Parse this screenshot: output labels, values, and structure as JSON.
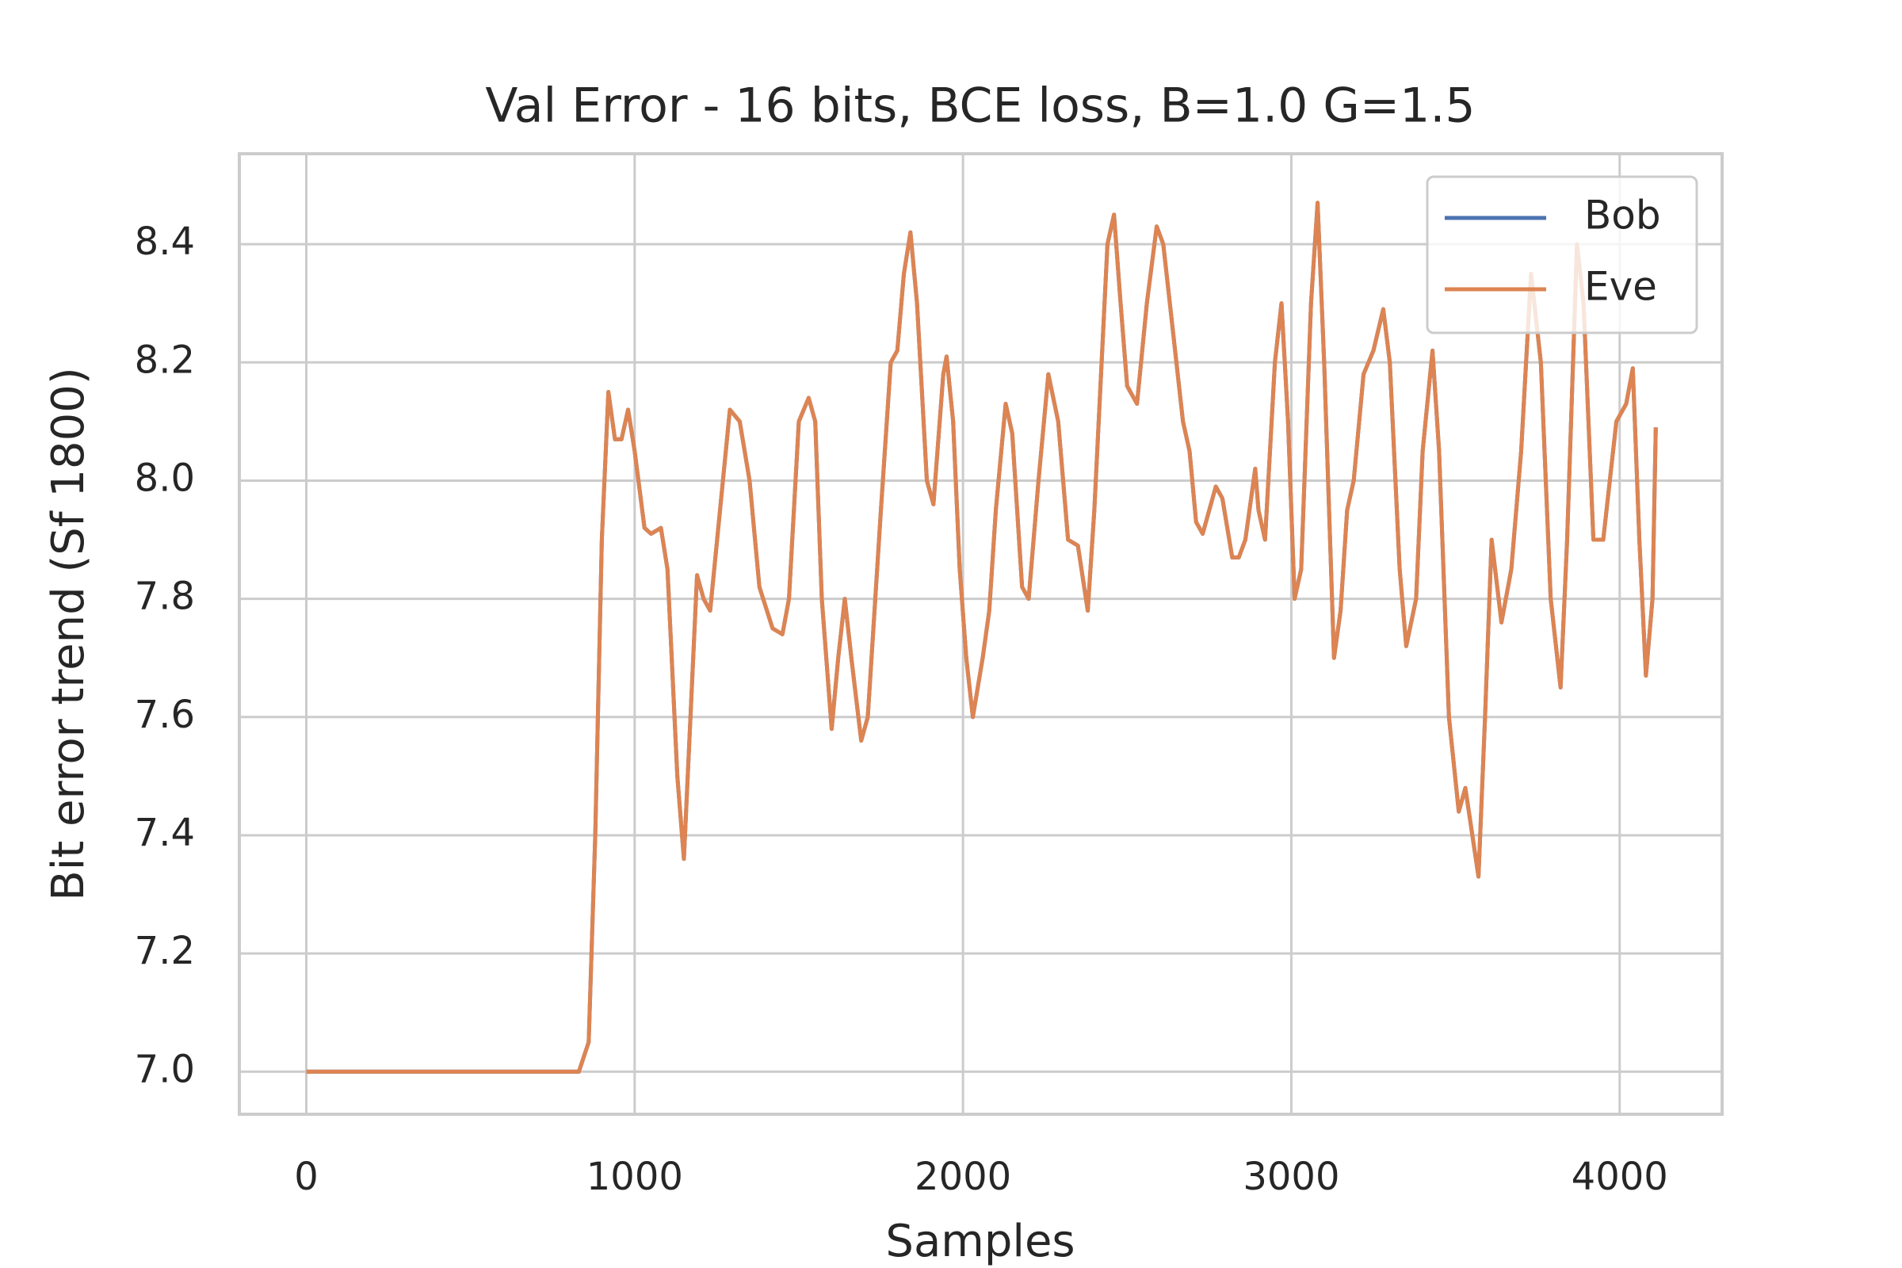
{
  "chart_data": {
    "type": "line",
    "title": "Val Error - 16 bits, BCE loss, B=1.0 G=1.5",
    "x_label": "Samples",
    "y_label": "Bit error trend (Sf 1800)",
    "x": [
      0,
      830,
      860,
      880,
      900,
      920,
      940,
      960,
      980,
      1000,
      1030,
      1050,
      1080,
      1100,
      1130,
      1150,
      1170,
      1190,
      1210,
      1230,
      1260,
      1290,
      1320,
      1350,
      1380,
      1420,
      1450,
      1470,
      1500,
      1530,
      1550,
      1570,
      1600,
      1620,
      1640,
      1660,
      1690,
      1710,
      1750,
      1780,
      1800,
      1820,
      1840,
      1860,
      1890,
      1910,
      1940,
      1950,
      1970,
      1990,
      2010,
      2030,
      2060,
      2080,
      2100,
      2130,
      2150,
      2180,
      2200,
      2230,
      2260,
      2290,
      2320,
      2350,
      2380,
      2400,
      2440,
      2460,
      2480,
      2500,
      2530,
      2560,
      2590,
      2610,
      2640,
      2670,
      2690,
      2710,
      2730,
      2770,
      2790,
      2820,
      2840,
      2860,
      2890,
      2900,
      2920,
      2950,
      2970,
      2990,
      3010,
      3030,
      3060,
      3080,
      3100,
      3130,
      3150,
      3170,
      3190,
      3220,
      3250,
      3280,
      3300,
      3330,
      3350,
      3380,
      3400,
      3430,
      3450,
      3480,
      3510,
      3530,
      3570,
      3590,
      3610,
      3640,
      3670,
      3700,
      3730,
      3760,
      3790,
      3820,
      3840,
      3870,
      3890,
      3920,
      3950,
      3990,
      4020,
      4040,
      4060,
      4080,
      4100,
      4110
    ],
    "series": [
      {
        "name": "Bob",
        "color": "#4c72b0",
        "values": [
          7.0,
          7.0,
          7.05,
          7.4,
          7.9,
          8.15,
          8.07,
          8.07,
          8.12,
          8.05,
          7.92,
          7.91,
          7.92,
          7.85,
          7.5,
          7.36,
          7.6,
          7.84,
          7.8,
          7.78,
          7.95,
          8.12,
          8.1,
          8.0,
          7.82,
          7.75,
          7.74,
          7.8,
          8.1,
          8.14,
          8.1,
          7.8,
          7.58,
          7.7,
          7.8,
          7.7,
          7.56,
          7.6,
          7.95,
          8.2,
          8.22,
          8.35,
          8.42,
          8.3,
          8.0,
          7.96,
          8.18,
          8.21,
          8.1,
          7.85,
          7.7,
          7.6,
          7.7,
          7.78,
          7.95,
          8.13,
          8.08,
          7.82,
          7.8,
          8.0,
          8.18,
          8.1,
          7.9,
          7.89,
          7.78,
          7.95,
          8.4,
          8.45,
          8.3,
          8.16,
          8.13,
          8.3,
          8.43,
          8.4,
          8.25,
          8.1,
          8.05,
          7.93,
          7.91,
          7.99,
          7.97,
          7.87,
          7.87,
          7.9,
          8.02,
          7.95,
          7.9,
          8.2,
          8.3,
          8.1,
          7.8,
          7.85,
          8.3,
          8.47,
          8.2,
          7.7,
          7.78,
          7.95,
          8.0,
          8.18,
          8.22,
          8.29,
          8.2,
          7.85,
          7.72,
          7.8,
          8.05,
          8.22,
          8.05,
          7.6,
          7.44,
          7.48,
          7.33,
          7.6,
          7.9,
          7.76,
          7.85,
          8.05,
          8.35,
          8.2,
          7.8,
          7.65,
          7.9,
          8.4,
          8.3,
          7.9,
          7.9,
          8.1,
          8.13,
          8.19,
          7.9,
          7.67,
          7.8,
          8.09
        ]
      },
      {
        "name": "Eve",
        "color": "#dd8452",
        "values": [
          7.0,
          7.0,
          7.05,
          7.4,
          7.9,
          8.15,
          8.07,
          8.07,
          8.12,
          8.05,
          7.92,
          7.91,
          7.92,
          7.85,
          7.5,
          7.36,
          7.6,
          7.84,
          7.8,
          7.78,
          7.95,
          8.12,
          8.1,
          8.0,
          7.82,
          7.75,
          7.74,
          7.8,
          8.1,
          8.14,
          8.1,
          7.8,
          7.58,
          7.7,
          7.8,
          7.7,
          7.56,
          7.6,
          7.95,
          8.2,
          8.22,
          8.35,
          8.42,
          8.3,
          8.0,
          7.96,
          8.18,
          8.21,
          8.1,
          7.85,
          7.7,
          7.6,
          7.7,
          7.78,
          7.95,
          8.13,
          8.08,
          7.82,
          7.8,
          8.0,
          8.18,
          8.1,
          7.9,
          7.89,
          7.78,
          7.95,
          8.4,
          8.45,
          8.3,
          8.16,
          8.13,
          8.3,
          8.43,
          8.4,
          8.25,
          8.1,
          8.05,
          7.93,
          7.91,
          7.99,
          7.97,
          7.87,
          7.87,
          7.9,
          8.02,
          7.95,
          7.9,
          8.2,
          8.3,
          8.1,
          7.8,
          7.85,
          8.3,
          8.47,
          8.2,
          7.7,
          7.78,
          7.95,
          8.0,
          8.18,
          8.22,
          8.29,
          8.2,
          7.85,
          7.72,
          7.8,
          8.05,
          8.22,
          8.05,
          7.6,
          7.44,
          7.48,
          7.33,
          7.6,
          7.9,
          7.76,
          7.85,
          8.05,
          8.35,
          8.2,
          7.8,
          7.65,
          7.9,
          8.4,
          8.3,
          7.9,
          7.9,
          8.1,
          8.13,
          8.19,
          7.9,
          7.67,
          7.8,
          8.09
        ]
      }
    ],
    "xlim": [
      -204,
      4312
    ],
    "ylim": [
      6.928,
      8.553
    ],
    "xticks": [
      0,
      1000,
      2000,
      3000,
      4000
    ],
    "yticks": [
      {
        "value": 7,
        "label": "7.0"
      },
      7.2,
      7.4,
      7.6,
      7.8,
      {
        "value": 8,
        "label": "8.0"
      },
      8.2,
      8.4
    ],
    "grid": true,
    "legend": "upper right"
  }
}
